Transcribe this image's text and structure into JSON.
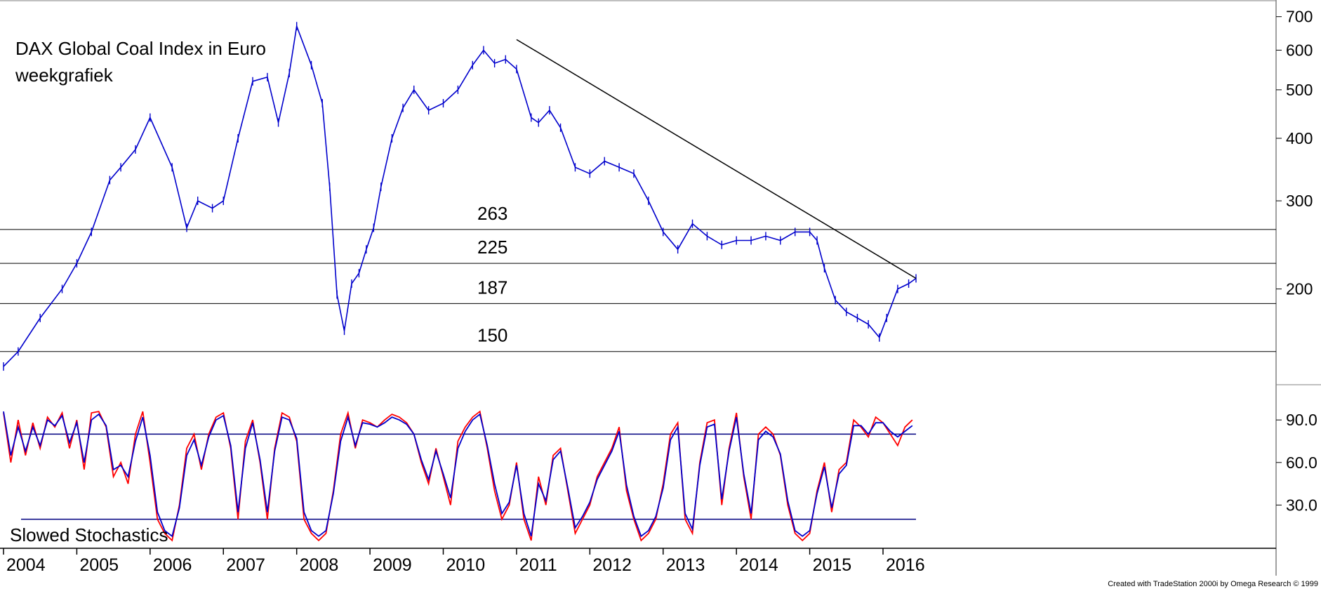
{
  "chart_data": [
    {
      "type": "line",
      "panel": "price",
      "title": "DAX Global Coal Index in Euro",
      "subtitle": "weekgrafiek",
      "y_scale": "log",
      "ylim": [
        130,
        720
      ],
      "y_ticks": [
        "700",
        "600",
        "500",
        "400",
        "300",
        "200"
      ],
      "x_ticks": [
        "2004",
        "2005",
        "2006",
        "2007",
        "2008",
        "2009",
        "2010",
        "2011",
        "2012",
        "2013",
        "2014",
        "2015",
        "2016"
      ],
      "xlim": [
        2004.0,
        2016.45
      ],
      "series": [
        {
          "color": "#0000cc",
          "x": [
            2004.0,
            2004.2,
            2004.5,
            2004.8,
            2005.0,
            2005.2,
            2005.45,
            2005.6,
            2005.8,
            2006.0,
            2006.3,
            2006.5,
            2006.65,
            2006.85,
            2007.0,
            2007.2,
            2007.4,
            2007.6,
            2007.75,
            2007.9,
            2008.0,
            2008.2,
            2008.35,
            2008.45,
            2008.55,
            2008.65,
            2008.75,
            2008.85,
            2008.95,
            2009.05,
            2009.15,
            2009.3,
            2009.45,
            2009.6,
            2009.8,
            2010.0,
            2010.2,
            2010.4,
            2010.55,
            2010.7,
            2010.85,
            2011.0,
            2011.2,
            2011.3,
            2011.45,
            2011.6,
            2011.8,
            2012.0,
            2012.2,
            2012.4,
            2012.6,
            2012.8,
            2013.0,
            2013.2,
            2013.4,
            2013.6,
            2013.8,
            2014.0,
            2014.2,
            2014.4,
            2014.6,
            2014.8,
            2015.0,
            2015.1,
            2015.2,
            2015.35,
            2015.5,
            2015.65,
            2015.8,
            2015.95,
            2016.05,
            2016.2,
            2016.35,
            2016.45
          ],
          "y": [
            140,
            150,
            175,
            200,
            225,
            260,
            330,
            350,
            380,
            440,
            350,
            265,
            300,
            290,
            300,
            400,
            520,
            530,
            430,
            540,
            670,
            560,
            470,
            320,
            195,
            165,
            205,
            215,
            240,
            265,
            320,
            400,
            460,
            500,
            455,
            470,
            500,
            560,
            600,
            565,
            575,
            550,
            440,
            430,
            455,
            420,
            350,
            340,
            360,
            350,
            340,
            300,
            260,
            240,
            270,
            255,
            245,
            250,
            250,
            255,
            250,
            260,
            260,
            250,
            220,
            190,
            180,
            175,
            170,
            160,
            175,
            200,
            205,
            210
          ]
        }
      ],
      "reference_lines": [
        {
          "label": "263",
          "value": 263
        },
        {
          "label": "225",
          "value": 225
        },
        {
          "label": "187",
          "value": 187
        },
        {
          "label": "150",
          "value": 150
        }
      ],
      "trendline": {
        "x": [
          2011.0,
          2016.45
        ],
        "y": [
          630,
          210
        ],
        "color": "#000000"
      }
    },
    {
      "type": "line",
      "panel": "oscillator",
      "annotation": "Slowed Stochastics",
      "ylim": [
        0,
        100
      ],
      "y_ticks": [
        "90.0",
        "60.0",
        "30.0"
      ],
      "y_tick_values": [
        90,
        60,
        30
      ],
      "reference_lines": [
        {
          "value": 80,
          "color": "#000080"
        },
        {
          "value": 20,
          "color": "#000080"
        }
      ],
      "series": [
        {
          "color": "#ff0000",
          "x": [
            2004.0,
            2004.1,
            2004.2,
            2004.3,
            2004.4,
            2004.5,
            2004.6,
            2004.7,
            2004.8,
            2004.9,
            2005.0,
            2005.1,
            2005.2,
            2005.3,
            2005.4,
            2005.5,
            2005.6,
            2005.7,
            2005.8,
            2005.9,
            2006.0,
            2006.1,
            2006.2,
            2006.3,
            2006.4,
            2006.5,
            2006.6,
            2006.7,
            2006.8,
            2006.9,
            2007.0,
            2007.1,
            2007.2,
            2007.3,
            2007.4,
            2007.5,
            2007.6,
            2007.7,
            2007.8,
            2007.9,
            2008.0,
            2008.1,
            2008.2,
            2008.3,
            2008.4,
            2008.5,
            2008.6,
            2008.7,
            2008.8,
            2008.9,
            2009.0,
            2009.1,
            2009.2,
            2009.3,
            2009.4,
            2009.5,
            2009.6,
            2009.7,
            2009.8,
            2009.9,
            2010.0,
            2010.1,
            2010.2,
            2010.3,
            2010.4,
            2010.5,
            2010.6,
            2010.7,
            2010.8,
            2010.9,
            2011.0,
            2011.1,
            2011.2,
            2011.3,
            2011.4,
            2011.5,
            2011.6,
            2011.7,
            2011.8,
            2011.9,
            2012.0,
            2012.1,
            2012.2,
            2012.3,
            2012.4,
            2012.5,
            2012.6,
            2012.7,
            2012.8,
            2012.9,
            2013.0,
            2013.1,
            2013.2,
            2013.3,
            2013.4,
            2013.5,
            2013.6,
            2013.7,
            2013.8,
            2013.9,
            2014.0,
            2014.1,
            2014.2,
            2014.3,
            2014.4,
            2014.5,
            2014.6,
            2014.7,
            2014.8,
            2014.9,
            2015.0,
            2015.1,
            2015.2,
            2015.3,
            2015.4,
            2015.5,
            2015.6,
            2015.7,
            2015.8,
            2015.9,
            2016.0,
            2016.1,
            2016.2,
            2016.3,
            2016.4
          ],
          "y": [
            95,
            60,
            90,
            65,
            88,
            70,
            92,
            85,
            95,
            70,
            90,
            55,
            95,
            96,
            85,
            50,
            60,
            45,
            80,
            96,
            60,
            20,
            10,
            5,
            30,
            70,
            80,
            55,
            80,
            92,
            95,
            70,
            20,
            75,
            90,
            60,
            20,
            70,
            95,
            92,
            75,
            20,
            10,
            5,
            10,
            40,
            80,
            95,
            70,
            90,
            88,
            85,
            90,
            94,
            92,
            88,
            80,
            60,
            45,
            70,
            50,
            30,
            75,
            85,
            92,
            96,
            70,
            40,
            20,
            30,
            60,
            20,
            5,
            50,
            30,
            65,
            70,
            40,
            10,
            20,
            30,
            50,
            60,
            70,
            85,
            40,
            20,
            5,
            10,
            20,
            45,
            80,
            88,
            20,
            10,
            60,
            88,
            90,
            30,
            70,
            95,
            50,
            20,
            80,
            85,
            80,
            65,
            30,
            10,
            5,
            10,
            40,
            60,
            25,
            55,
            60,
            90,
            85,
            78,
            92,
            88,
            80,
            72,
            85,
            90
          ]
        },
        {
          "color": "#0000cc",
          "x": [
            2004.0,
            2004.1,
            2004.2,
            2004.3,
            2004.4,
            2004.5,
            2004.6,
            2004.7,
            2004.8,
            2004.9,
            2005.0,
            2005.1,
            2005.2,
            2005.3,
            2005.4,
            2005.5,
            2005.6,
            2005.7,
            2005.8,
            2005.9,
            2006.0,
            2006.1,
            2006.2,
            2006.3,
            2006.4,
            2006.5,
            2006.6,
            2006.7,
            2006.8,
            2006.9,
            2007.0,
            2007.1,
            2007.2,
            2007.3,
            2007.4,
            2007.5,
            2007.6,
            2007.7,
            2007.8,
            2007.9,
            2008.0,
            2008.1,
            2008.2,
            2008.3,
            2008.4,
            2008.5,
            2008.6,
            2008.7,
            2008.8,
            2008.9,
            2009.0,
            2009.1,
            2009.2,
            2009.3,
            2009.4,
            2009.5,
            2009.6,
            2009.7,
            2009.8,
            2009.9,
            2010.0,
            2010.1,
            2010.2,
            2010.3,
            2010.4,
            2010.5,
            2010.6,
            2010.7,
            2010.8,
            2010.9,
            2011.0,
            2011.1,
            2011.2,
            2011.3,
            2011.4,
            2011.5,
            2011.6,
            2011.7,
            2011.8,
            2011.9,
            2012.0,
            2012.1,
            2012.2,
            2012.3,
            2012.4,
            2012.5,
            2012.6,
            2012.7,
            2012.8,
            2012.9,
            2013.0,
            2013.1,
            2013.2,
            2013.3,
            2013.4,
            2013.5,
            2013.6,
            2013.7,
            2013.8,
            2013.9,
            2014.0,
            2014.1,
            2014.2,
            2014.3,
            2014.4,
            2014.5,
            2014.6,
            2014.7,
            2014.8,
            2014.9,
            2015.0,
            2015.1,
            2015.2,
            2015.3,
            2015.4,
            2015.5,
            2015.6,
            2015.7,
            2015.8,
            2015.9,
            2016.0,
            2016.1,
            2016.2,
            2016.3,
            2016.4
          ],
          "y": [
            96,
            65,
            85,
            68,
            85,
            72,
            90,
            86,
            93,
            74,
            88,
            60,
            90,
            94,
            86,
            55,
            58,
            50,
            75,
            92,
            65,
            25,
            12,
            8,
            28,
            65,
            76,
            58,
            78,
            90,
            93,
            72,
            25,
            70,
            88,
            62,
            25,
            68,
            92,
            90,
            77,
            25,
            12,
            8,
            12,
            38,
            75,
            92,
            72,
            88,
            87,
            85,
            88,
            92,
            90,
            87,
            80,
            62,
            48,
            68,
            52,
            35,
            70,
            82,
            90,
            94,
            72,
            45,
            24,
            32,
            58,
            24,
            8,
            45,
            33,
            62,
            68,
            42,
            14,
            22,
            32,
            48,
            58,
            68,
            82,
            44,
            22,
            8,
            12,
            22,
            42,
            76,
            85,
            24,
            13,
            58,
            85,
            87,
            34,
            68,
            92,
            52,
            24,
            76,
            82,
            78,
            66,
            33,
            12,
            8,
            12,
            38,
            57,
            28,
            52,
            58,
            86,
            86,
            80,
            88,
            88,
            82,
            78,
            82,
            86
          ]
        }
      ]
    }
  ],
  "footer": {
    "credit": "Created with TradeStation 2000i by Omega Research © 1999"
  }
}
